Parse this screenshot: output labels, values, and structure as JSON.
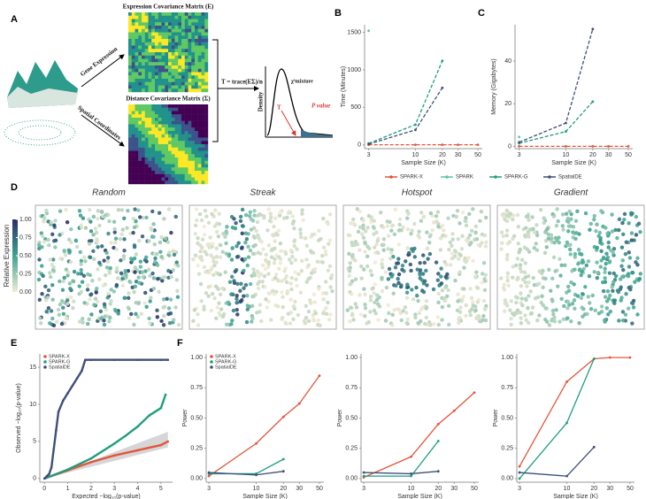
{
  "panel_labels": [
    "A",
    "B",
    "C",
    "D",
    "E",
    "F"
  ],
  "diagram": {
    "expression_matrix": "Expression Covariance Matrix (E)",
    "distance_matrix": "Distance Covariance Matrix (Σ)",
    "gene_expression": "Gene Expression",
    "spatial_coordinates": "Spatial Coordinates",
    "statistic": "T = trace(EΣ)/n",
    "density": "Density",
    "chi": "χ²mixture",
    "t": "T",
    "p_value": "P value"
  },
  "chart_data": [
    {
      "type": "line",
      "xlog": true,
      "dashed": true,
      "legend": "bottom",
      "x": [
        3,
        10,
        20,
        30,
        50
      ],
      "xlim": [
        2.7,
        56
      ],
      "xticks": [
        3,
        10,
        20,
        30,
        50
      ],
      "ylim": [
        -50,
        1600
      ],
      "yticks": [
        0,
        500,
        1000,
        1500
      ],
      "xlabel": "Sample Size (K)",
      "ylabel": "Time (Minutes)",
      "series": [
        {
          "name": "SPARK-X",
          "color": "#e4553b",
          "values": [
            2,
            2,
            2,
            2,
            2
          ]
        },
        {
          "name": "SPARK",
          "color": "#5cc6a4",
          "values": [
            1520,
            null,
            null,
            null,
            null
          ]
        },
        {
          "name": "SPARK-G",
          "color": "#1f9e7e",
          "values": [
            20,
            270,
            1120,
            null,
            null
          ]
        },
        {
          "name": "SpatialDE",
          "color": "#3e4f7c",
          "values": [
            10,
            200,
            760,
            null,
            null
          ]
        }
      ]
    },
    {
      "type": "line",
      "xlog": true,
      "dashed": true,
      "x": [
        3,
        10,
        20,
        30,
        50
      ],
      "xlim": [
        2.7,
        56
      ],
      "xticks": [
        3,
        10,
        20,
        30,
        50
      ],
      "ylim": [
        -1,
        57
      ],
      "yticks": [
        0,
        20,
        40
      ],
      "xlabel": "Sample Size (K)",
      "ylabel": "Memory (Gigabytes)",
      "series": [
        {
          "name": "SPARK-X",
          "color": "#e4553b",
          "values": [
            0.1,
            0.1,
            0.1,
            0.1,
            0.1
          ]
        },
        {
          "name": "SPARK",
          "color": "#5cc6a4",
          "values": [
            4.5,
            null,
            null,
            null,
            null
          ]
        },
        {
          "name": "SPARK-G",
          "color": "#1f9e7e",
          "values": [
            1.5,
            7,
            21,
            null,
            null
          ]
        },
        {
          "name": "SpatialDE",
          "color": "#3e4f7c",
          "values": [
            2,
            11,
            55,
            null,
            null
          ]
        }
      ]
    },
    {
      "type": "spatial",
      "titles": [
        "Random",
        "Streak",
        "Hotspot",
        "Gradient"
      ],
      "colorbar_label": "Relative Expression",
      "ylim": [
        0,
        1
      ],
      "yticks": [
        {
          "value": 0,
          "label": "0.00"
        },
        {
          "value": 0.25,
          "label": "0.25"
        },
        {
          "value": 0.5,
          "label": "0.50"
        },
        {
          "value": 0.75,
          "label": "0.75"
        },
        {
          "value": 1,
          "label": "1.00"
        }
      ]
    },
    {
      "type": "qq",
      "legend": "top-left",
      "xlim": [
        -0.2,
        5.5
      ],
      "xticks": [
        0,
        1,
        2,
        3,
        4,
        5
      ],
      "ylim": [
        -0.5,
        16.8
      ],
      "yticks": [
        0,
        5,
        10,
        15
      ],
      "xlabel": "Expected −log₁₀(p-value)",
      "ylabel": "Observed −log₁₀(p-value)",
      "series": [
        {
          "name": "SPARK-X",
          "color": "#e4553b",
          "x": [
            0,
            1,
            2,
            3,
            4,
            5,
            5.3
          ],
          "values": [
            0,
            1.1,
            2.2,
            3.1,
            3.8,
            4.5,
            5
          ]
        },
        {
          "name": "SPARK-G",
          "color": "#1f9e7e",
          "x": [
            0,
            1,
            2,
            3,
            3.5,
            4,
            4.5,
            5,
            5.2
          ],
          "values": [
            0,
            1.2,
            2.7,
            4.7,
            5.8,
            7,
            8.5,
            9.5,
            11.3
          ]
        },
        {
          "name": "SpatialDE",
          "color": "#3e4f7c",
          "x": [
            0,
            0.1,
            0.2,
            0.3,
            0.4,
            0.5,
            0.6,
            0.8,
            1,
            1.2,
            1.4,
            1.6,
            1.75,
            2,
            3,
            4,
            5,
            5.3
          ],
          "values": [
            0,
            0.3,
            0.6,
            1.5,
            4,
            6.5,
            9,
            10.5,
            11.5,
            12.5,
            13.5,
            14.5,
            16,
            16,
            16,
            16,
            16,
            16
          ]
        }
      ]
    },
    {
      "type": "line",
      "xlog": true,
      "legend": "top-left",
      "x": [
        3,
        10,
        20,
        30,
        50
      ],
      "xlim": [
        2.8,
        56
      ],
      "xticks": [
        3,
        10,
        20,
        30,
        50
      ],
      "ylim": [
        -0.03,
        1.03
      ],
      "yticks": [
        {
          "value": 0,
          "label": "0.00"
        },
        {
          "value": 0.25,
          "label": "0.25"
        },
        {
          "value": 0.5,
          "label": "0.50"
        },
        {
          "value": 0.75,
          "label": "0.75"
        },
        {
          "value": 1,
          "label": "1.00"
        }
      ],
      "xlabel": "Sample Size (K)",
      "ylabel": "Power",
      "series": [
        {
          "name": "SPARK-X",
          "color": "#e4553b",
          "values": [
            0.02,
            0.29,
            0.51,
            0.62,
            0.85
          ]
        },
        {
          "name": "SPARK-G",
          "color": "#1f9e7e",
          "values": [
            0.04,
            0.04,
            0.16,
            null,
            null
          ]
        },
        {
          "name": "SpatialDE",
          "color": "#3e4f7c",
          "values": [
            0.05,
            0.03,
            0.06,
            null,
            null
          ]
        }
      ]
    },
    {
      "type": "line",
      "xlog": true,
      "x": [
        3,
        10,
        20,
        30,
        50
      ],
      "xlim": [
        2.8,
        56
      ],
      "xticks": [
        3,
        10,
        20,
        30,
        50
      ],
      "ylim": [
        -0.03,
        1.03
      ],
      "yticks": [
        {
          "value": 0,
          "label": "0.00"
        },
        {
          "value": 0.25,
          "label": "0.25"
        },
        {
          "value": 0.5,
          "label": "0.50"
        },
        {
          "value": 0.75,
          "label": "0.75"
        },
        {
          "value": 1,
          "label": "1.00"
        }
      ],
      "xlabel": "Sample Size (K)",
      "ylabel": "Power",
      "series": [
        {
          "name": "SPARK-X",
          "color": "#e4553b",
          "values": [
            0.01,
            0.18,
            0.45,
            0.56,
            0.71
          ]
        },
        {
          "name": "SPARK-G",
          "color": "#1f9e7e",
          "values": [
            0.02,
            0.02,
            0.31,
            null,
            null
          ]
        },
        {
          "name": "SpatialDE",
          "color": "#3e4f7c",
          "values": [
            0.05,
            0.04,
            0.06,
            null,
            null
          ]
        }
      ]
    },
    {
      "type": "line",
      "xlog": true,
      "x": [
        3,
        10,
        20,
        30,
        50
      ],
      "xlim": [
        2.8,
        56
      ],
      "xticks": [
        3,
        10,
        20,
        30,
        50
      ],
      "ylim": [
        -0.03,
        1.03
      ],
      "yticks": [
        {
          "value": 0,
          "label": "0.00"
        },
        {
          "value": 0.25,
          "label": "0.25"
        },
        {
          "value": 0.5,
          "label": "0.50"
        },
        {
          "value": 0.75,
          "label": "0.75"
        },
        {
          "value": 1,
          "label": "1.00"
        }
      ],
      "xlabel": "Sample Size (K)",
      "ylabel": "Power",
      "series": [
        {
          "name": "SPARK-X",
          "color": "#e4553b",
          "values": [
            0.1,
            0.8,
            0.99,
            1,
            1
          ]
        },
        {
          "name": "SPARK-G",
          "color": "#1f9e7e",
          "values": [
            0,
            0.46,
            0.99,
            null,
            null
          ]
        },
        {
          "name": "SpatialDE",
          "color": "#3e4f7c",
          "values": [
            0.05,
            0.02,
            0.26,
            null,
            null
          ]
        }
      ]
    }
  ]
}
